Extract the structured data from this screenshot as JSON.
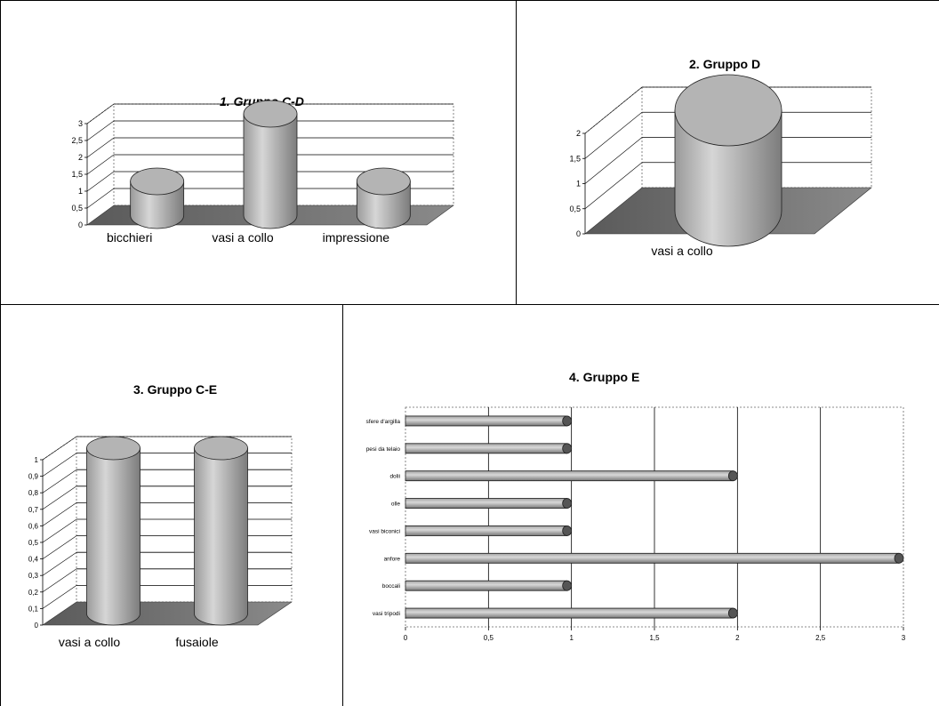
{
  "chart_data": [
    {
      "type": "bar",
      "title": "1. Gruppo C-D",
      "categories": [
        "bicchieri",
        "vasi a collo",
        "impressione"
      ],
      "values": [
        1,
        3,
        1
      ],
      "ylim": [
        0,
        3
      ],
      "yticks": [
        "0",
        "0,5",
        "1",
        "1,5",
        "2",
        "2,5",
        "3"
      ],
      "grid": true,
      "orientation": "vertical"
    },
    {
      "type": "bar",
      "title": "2. Gruppo D",
      "categories": [
        "vasi a collo"
      ],
      "values": [
        2
      ],
      "ylim": [
        0,
        2
      ],
      "yticks": [
        "0",
        "0,5",
        "1",
        "1,5",
        "2"
      ],
      "grid": true,
      "orientation": "vertical"
    },
    {
      "type": "bar",
      "title": "3. Gruppo C-E",
      "categories": [
        "vasi a collo",
        "fusaiole"
      ],
      "values": [
        1,
        1
      ],
      "ylim": [
        0,
        1
      ],
      "yticks": [
        "0",
        "0,1",
        "0,2",
        "0,3",
        "0,4",
        "0,5",
        "0,6",
        "0,7",
        "0,8",
        "0,9",
        "1"
      ],
      "grid": true,
      "orientation": "vertical"
    },
    {
      "type": "bar",
      "title": "4. Gruppo E",
      "categories": [
        "sfere d'argilla",
        "pesi da telaio",
        "dolii",
        "olle",
        "vasi biconici",
        "anfore",
        "boccali",
        "vasi tripodi"
      ],
      "values": [
        1,
        1,
        2,
        1,
        1,
        3,
        1,
        2
      ],
      "xlim": [
        0,
        3
      ],
      "xticks": [
        "0",
        "0,5",
        "1",
        "1,5",
        "2",
        "2,5",
        "3"
      ],
      "grid": true,
      "orientation": "horizontal"
    }
  ]
}
